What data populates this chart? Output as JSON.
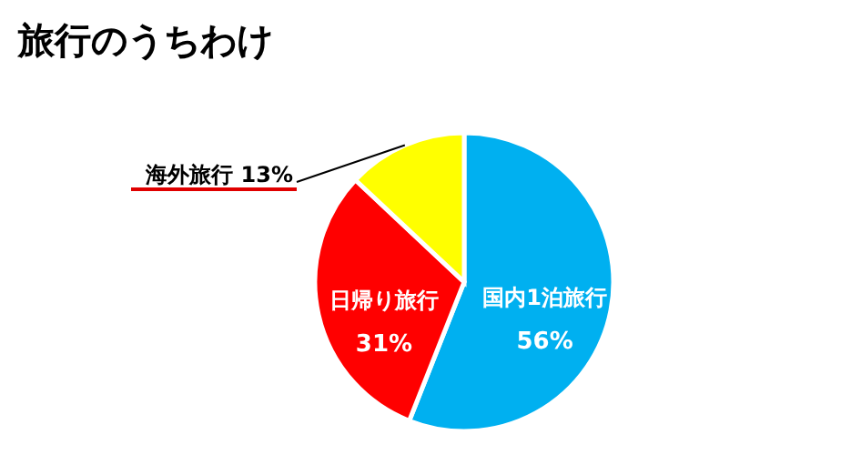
{
  "chart_data": {
    "type": "pie",
    "title": "旅行のうちわけ",
    "categories": [
      "国内1泊旅行",
      "日帰り旅行",
      "海外旅行"
    ],
    "values": [
      56,
      31,
      13
    ],
    "value_labels": [
      "56%",
      "31%",
      "13%"
    ],
    "colors": [
      "#00b0f0",
      "#ff0000",
      "#ffff00"
    ]
  }
}
